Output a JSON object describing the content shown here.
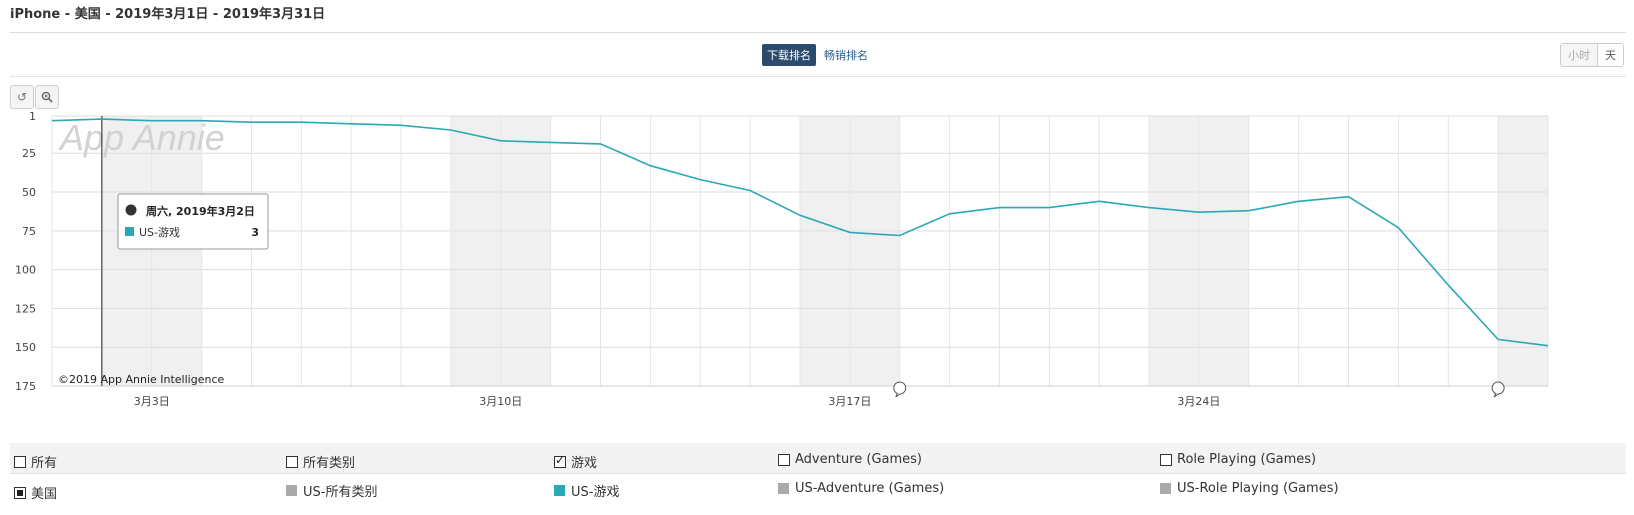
{
  "header": {
    "title": "iPhone - 美国 - 2019年3月1日 - 2019年3月31日"
  },
  "rank_tabs": {
    "active": "下载排名",
    "inactive": "畅销排名"
  },
  "granularity": {
    "hour": "小时",
    "day": "天"
  },
  "toolbar": {
    "reset_icon": "reset-icon",
    "zoom_icon": "zoom-icon"
  },
  "watermark": "App Annie",
  "copyright": "©2019 App Annie Intelligence",
  "tooltip": {
    "date": "周六, 2019年3月2日",
    "series": "US-游戏",
    "value": "3"
  },
  "chart_data": {
    "type": "line",
    "x_dates": [
      "2019-03-01",
      "2019-03-02",
      "2019-03-03",
      "2019-03-04",
      "2019-03-05",
      "2019-03-06",
      "2019-03-07",
      "2019-03-08",
      "2019-03-09",
      "2019-03-10",
      "2019-03-11",
      "2019-03-12",
      "2019-03-13",
      "2019-03-14",
      "2019-03-15",
      "2019-03-16",
      "2019-03-17",
      "2019-03-18",
      "2019-03-19",
      "2019-03-20",
      "2019-03-21",
      "2019-03-22",
      "2019-03-23",
      "2019-03-24",
      "2019-03-25",
      "2019-03-26",
      "2019-03-27",
      "2019-03-28",
      "2019-03-29",
      "2019-03-30",
      "2019-03-31"
    ],
    "series": [
      {
        "name": "US-游戏",
        "color": "#2aa8b4",
        "values": [
          4,
          3,
          4,
          4,
          5,
          5,
          6,
          7,
          10,
          17,
          18,
          19,
          33,
          42,
          49,
          65,
          76,
          78,
          64,
          60,
          60,
          56,
          60,
          63,
          62,
          56,
          53,
          73,
          110,
          145,
          149
        ]
      }
    ],
    "x_tick_labels": [
      "3月3日",
      "3月10日",
      "3月17日",
      "3月24日"
    ],
    "x_tick_dates": [
      "2019-03-03",
      "2019-03-10",
      "2019-03-17",
      "2019-03-24"
    ],
    "y_tick_labels": [
      "1",
      "25",
      "50",
      "75",
      "100",
      "125",
      "150",
      "175"
    ],
    "y_tick_values": [
      1,
      25,
      50,
      75,
      100,
      125,
      150,
      175
    ],
    "ylim": [
      1,
      175
    ],
    "y_reversed": true,
    "weekend_bands": true,
    "grid": true,
    "event_marker_dates": [
      "2019-03-18",
      "2019-03-30"
    ]
  },
  "legend": {
    "categories": [
      {
        "label": "所有",
        "state": "unchecked"
      },
      {
        "label": "所有类别",
        "state": "unchecked"
      },
      {
        "label": "游戏",
        "state": "checked"
      },
      {
        "label": "Adventure (Games)",
        "state": "unchecked"
      },
      {
        "label": "Role Playing (Games)",
        "state": "unchecked"
      }
    ],
    "series": [
      {
        "label": "美国",
        "kind": "checkbox"
      },
      {
        "label": "US-所有类别",
        "color": "#aaaaaa"
      },
      {
        "label": "US-游戏",
        "color": "#2aa8b4"
      },
      {
        "label": "US-Adventure (Games)",
        "color": "#aaaaaa"
      },
      {
        "label": "US-Role Playing (Games)",
        "color": "#aaaaaa"
      }
    ]
  }
}
